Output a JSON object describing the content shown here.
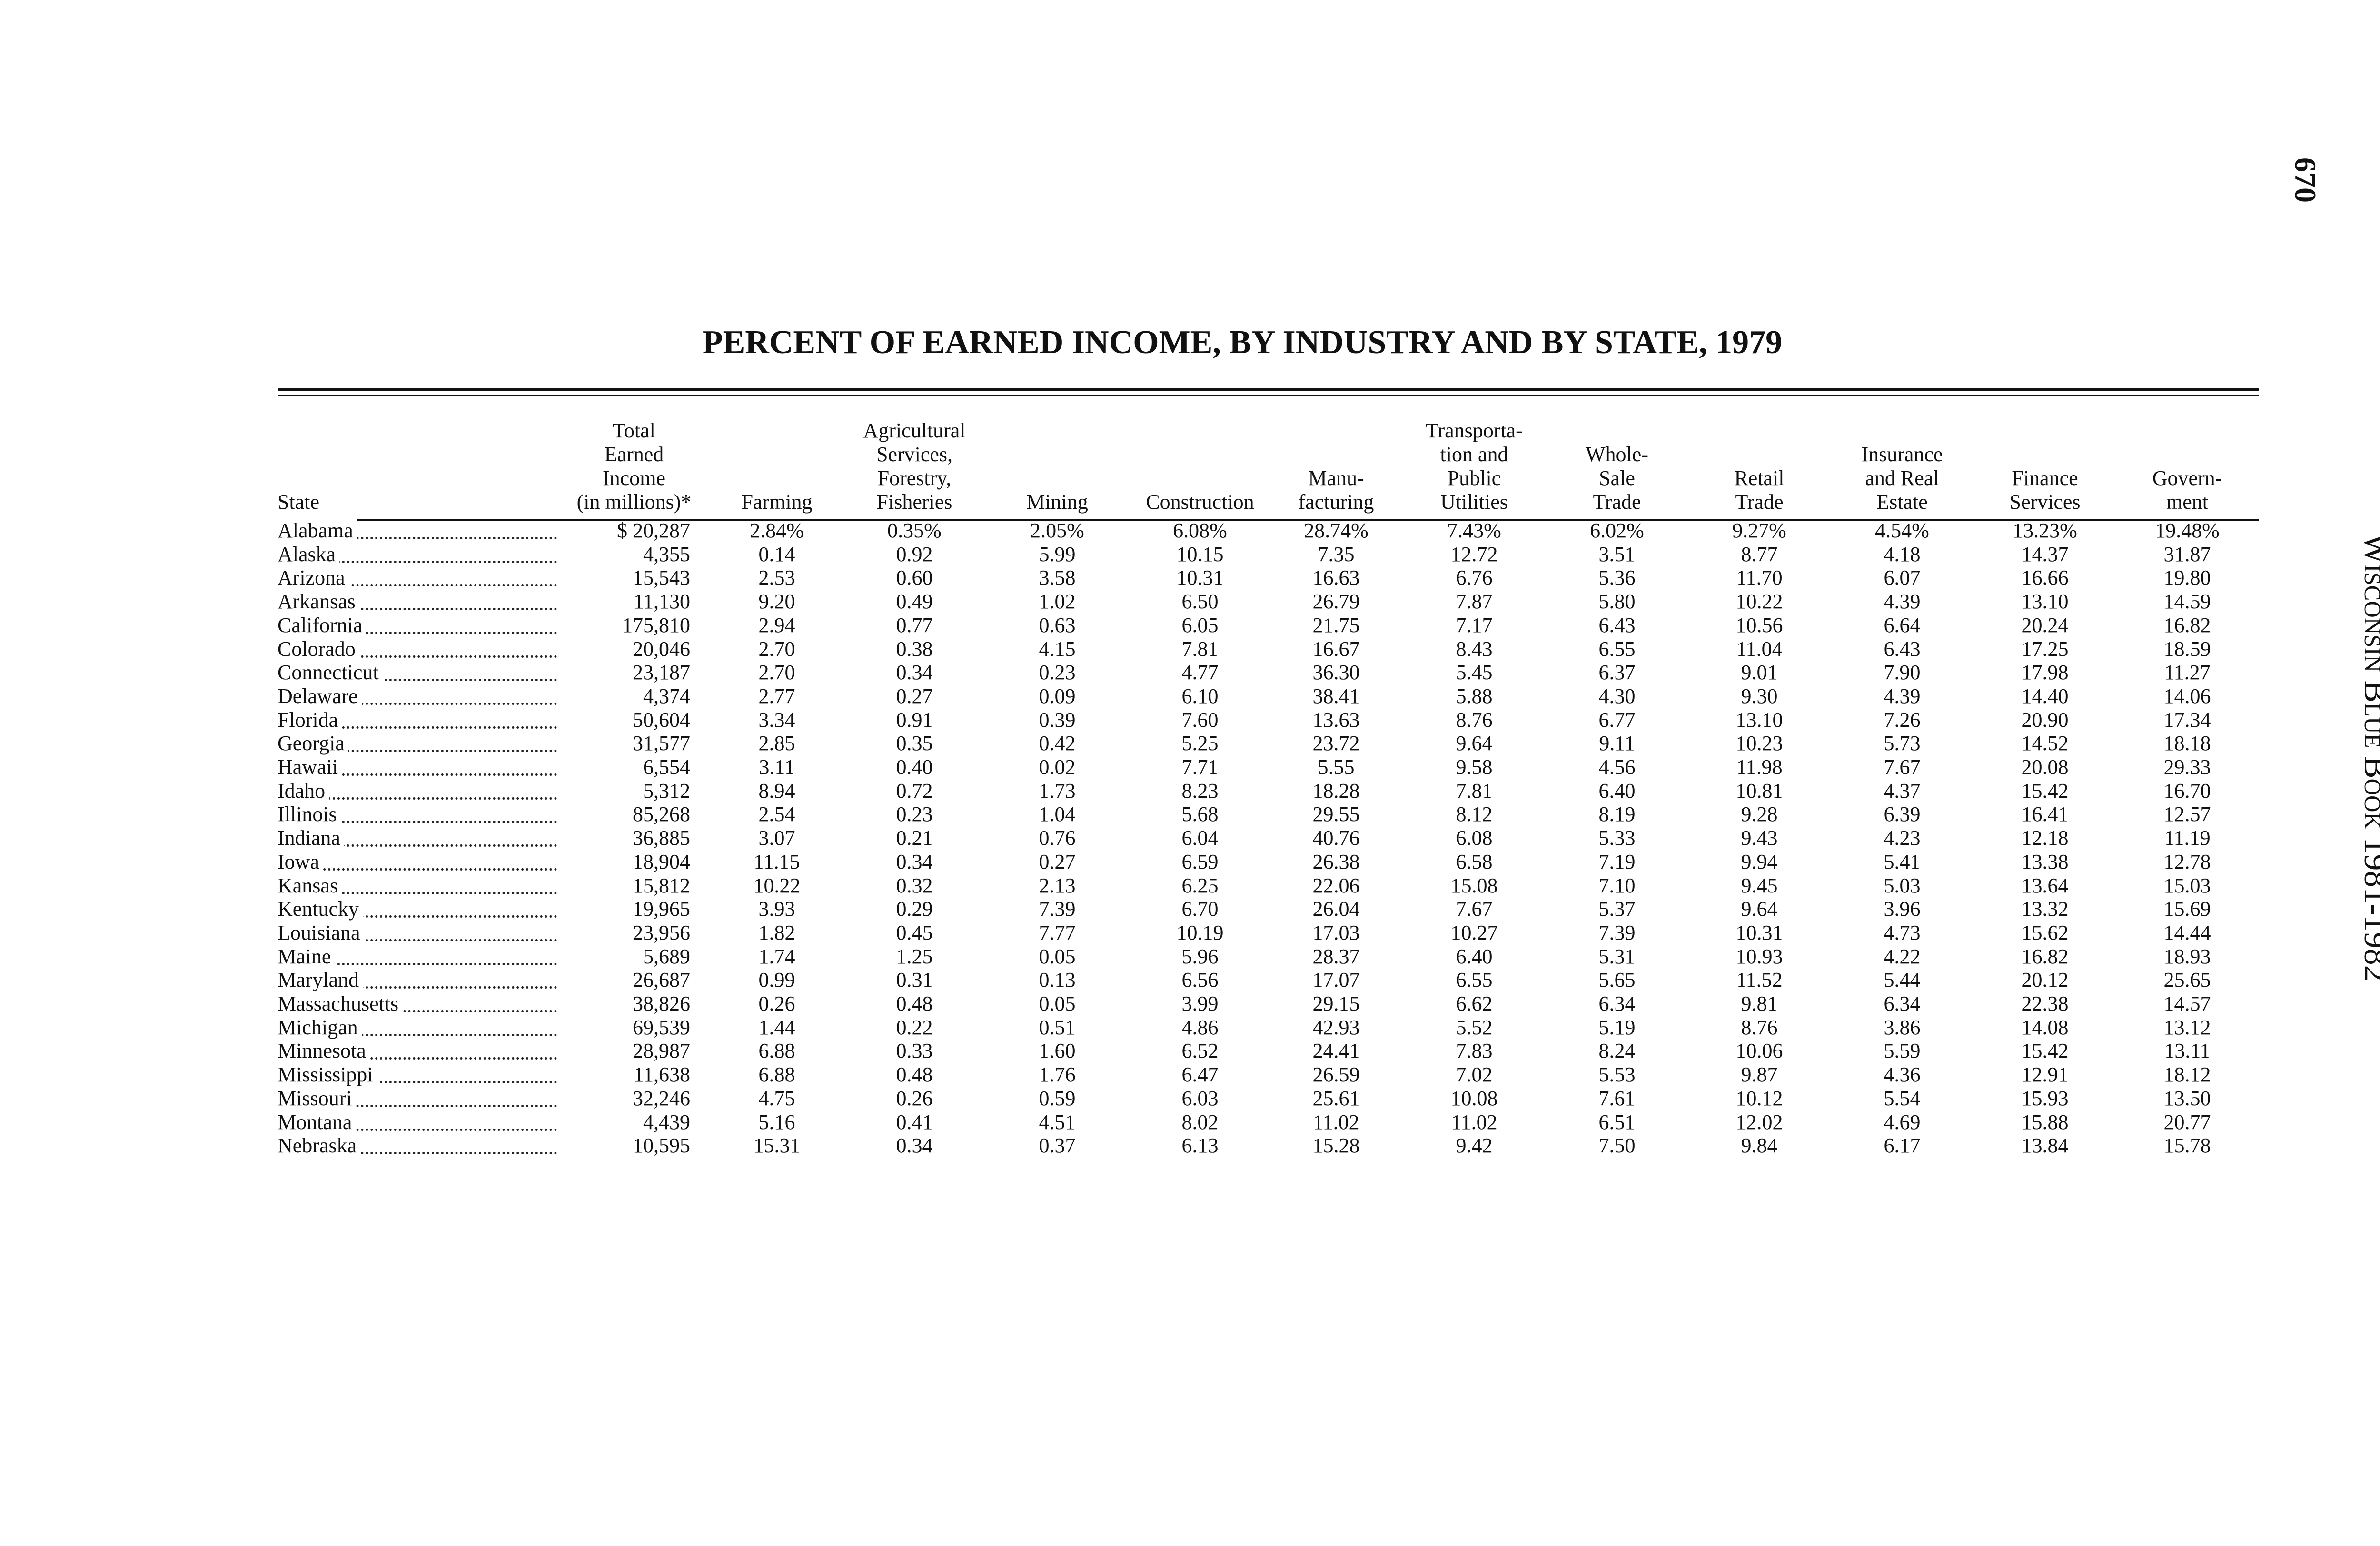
{
  "page_number": "670",
  "side_text": "Wisconsin Blue Book 1981-1982",
  "title": "PERCENT OF EARNED INCOME, BY INDUSTRY AND BY STATE, 1979",
  "table": {
    "headers": [
      [
        "State"
      ],
      [
        "Total",
        "Earned",
        "Income",
        "(in millions)*"
      ],
      [
        "Farming"
      ],
      [
        "Agricultural",
        "Services,",
        "Forestry,",
        "Fisheries"
      ],
      [
        "Mining"
      ],
      [
        "Construction"
      ],
      [
        "Manu-",
        "facturing"
      ],
      [
        "Transporta-",
        "tion and",
        "Public",
        "Utilities"
      ],
      [
        "Whole-",
        "Sale",
        "Trade"
      ],
      [
        "Retail",
        "Trade"
      ],
      [
        "Insurance",
        "and Real",
        "Estate"
      ],
      [
        "Finance",
        "Services"
      ],
      [
        "Govern-",
        "ment"
      ]
    ],
    "rows": [
      [
        "Alabama",
        "$ 20,287",
        "2.84%",
        "0.35%",
        "2.05%",
        "6.08%",
        "28.74%",
        "7.43%",
        "6.02%",
        "9.27%",
        "4.54%",
        "13.23%",
        "19.48%"
      ],
      [
        "Alaska",
        "4,355",
        "0.14",
        "0.92",
        "5.99",
        "10.15",
        "7.35",
        "12.72",
        "3.51",
        "8.77",
        "4.18",
        "14.37",
        "31.87"
      ],
      [
        "Arizona",
        "15,543",
        "2.53",
        "0.60",
        "3.58",
        "10.31",
        "16.63",
        "6.76",
        "5.36",
        "11.70",
        "6.07",
        "16.66",
        "19.80"
      ],
      [
        "Arkansas",
        "11,130",
        "9.20",
        "0.49",
        "1.02",
        "6.50",
        "26.79",
        "7.87",
        "5.80",
        "10.22",
        "4.39",
        "13.10",
        "14.59"
      ],
      [
        "California",
        "175,810",
        "2.94",
        "0.77",
        "0.63",
        "6.05",
        "21.75",
        "7.17",
        "6.43",
        "10.56",
        "6.64",
        "20.24",
        "16.82"
      ],
      [
        "Colorado",
        "20,046",
        "2.70",
        "0.38",
        "4.15",
        "7.81",
        "16.67",
        "8.43",
        "6.55",
        "11.04",
        "6.43",
        "17.25",
        "18.59"
      ],
      [
        "Connecticut",
        "23,187",
        "2.70",
        "0.34",
        "0.23",
        "4.77",
        "36.30",
        "5.45",
        "6.37",
        "9.01",
        "7.90",
        "17.98",
        "11.27"
      ],
      [
        "Delaware",
        "4,374",
        "2.77",
        "0.27",
        "0.09",
        "6.10",
        "38.41",
        "5.88",
        "4.30",
        "9.30",
        "4.39",
        "14.40",
        "14.06"
      ],
      [
        "Florida",
        "50,604",
        "3.34",
        "0.91",
        "0.39",
        "7.60",
        "13.63",
        "8.76",
        "6.77",
        "13.10",
        "7.26",
        "20.90",
        "17.34"
      ],
      [
        "Georgia",
        "31,577",
        "2.85",
        "0.35",
        "0.42",
        "5.25",
        "23.72",
        "9.64",
        "9.11",
        "10.23",
        "5.73",
        "14.52",
        "18.18"
      ],
      [
        "Hawaii",
        "6,554",
        "3.11",
        "0.40",
        "0.02",
        "7.71",
        "5.55",
        "9.58",
        "4.56",
        "11.98",
        "7.67",
        "20.08",
        "29.33"
      ],
      [
        "Idaho",
        "5,312",
        "8.94",
        "0.72",
        "1.73",
        "8.23",
        "18.28",
        "7.81",
        "6.40",
        "10.81",
        "4.37",
        "15.42",
        "16.70"
      ],
      [
        "Illinois",
        "85,268",
        "2.54",
        "0.23",
        "1.04",
        "5.68",
        "29.55",
        "8.12",
        "8.19",
        "9.28",
        "6.39",
        "16.41",
        "12.57"
      ],
      [
        "Indiana",
        "36,885",
        "3.07",
        "0.21",
        "0.76",
        "6.04",
        "40.76",
        "6.08",
        "5.33",
        "9.43",
        "4.23",
        "12.18",
        "11.19"
      ],
      [
        "Iowa",
        "18,904",
        "11.15",
        "0.34",
        "0.27",
        "6.59",
        "26.38",
        "6.58",
        "7.19",
        "9.94",
        "5.41",
        "13.38",
        "12.78"
      ],
      [
        "Kansas",
        "15,812",
        "10.22",
        "0.32",
        "2.13",
        "6.25",
        "22.06",
        "15.08",
        "7.10",
        "9.45",
        "5.03",
        "13.64",
        "15.03"
      ],
      [
        "Kentucky",
        "19,965",
        "3.93",
        "0.29",
        "7.39",
        "6.70",
        "26.04",
        "7.67",
        "5.37",
        "9.64",
        "3.96",
        "13.32",
        "15.69"
      ],
      [
        "Louisiana",
        "23,956",
        "1.82",
        "0.45",
        "7.77",
        "10.19",
        "17.03",
        "10.27",
        "7.39",
        "10.31",
        "4.73",
        "15.62",
        "14.44"
      ],
      [
        "Maine",
        "5,689",
        "1.74",
        "1.25",
        "0.05",
        "5.96",
        "28.37",
        "6.40",
        "5.31",
        "10.93",
        "4.22",
        "16.82",
        "18.93"
      ],
      [
        "Maryland",
        "26,687",
        "0.99",
        "0.31",
        "0.13",
        "6.56",
        "17.07",
        "6.55",
        "5.65",
        "11.52",
        "5.44",
        "20.12",
        "25.65"
      ],
      [
        "Massachusetts",
        "38,826",
        "0.26",
        "0.48",
        "0.05",
        "3.99",
        "29.15",
        "6.62",
        "6.34",
        "9.81",
        "6.34",
        "22.38",
        "14.57"
      ],
      [
        "Michigan",
        "69,539",
        "1.44",
        "0.22",
        "0.51",
        "4.86",
        "42.93",
        "5.52",
        "5.19",
        "8.76",
        "3.86",
        "14.08",
        "13.12"
      ],
      [
        "Minnesota",
        "28,987",
        "6.88",
        "0.33",
        "1.60",
        "6.52",
        "24.41",
        "7.83",
        "8.24",
        "10.06",
        "5.59",
        "15.42",
        "13.11"
      ],
      [
        "Mississippi",
        "11,638",
        "6.88",
        "0.48",
        "1.76",
        "6.47",
        "26.59",
        "7.02",
        "5.53",
        "9.87",
        "4.36",
        "12.91",
        "18.12"
      ],
      [
        "Missouri",
        "32,246",
        "4.75",
        "0.26",
        "0.59",
        "6.03",
        "25.61",
        "10.08",
        "7.61",
        "10.12",
        "5.54",
        "15.93",
        "13.50"
      ],
      [
        "Montana",
        "4,439",
        "5.16",
        "0.41",
        "4.51",
        "8.02",
        "11.02",
        "11.02",
        "6.51",
        "12.02",
        "4.69",
        "15.88",
        "20.77"
      ],
      [
        "Nebraska",
        "10,595",
        "15.31",
        "0.34",
        "0.37",
        "6.13",
        "15.28",
        "9.42",
        "7.50",
        "9.84",
        "6.17",
        "13.84",
        "15.78"
      ]
    ]
  }
}
